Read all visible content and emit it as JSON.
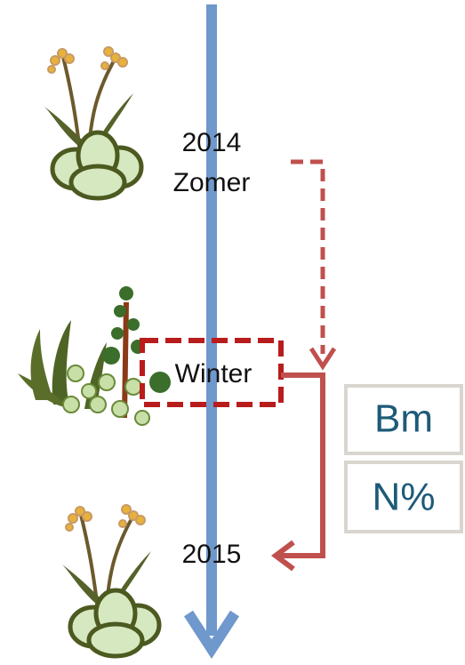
{
  "timeline": {
    "start": {
      "year": "2014",
      "season": "Zomer"
    },
    "middle": {
      "season": "Winter"
    },
    "end": {
      "year": "2015"
    }
  },
  "measures": [
    "Bm",
    "N%"
  ]
}
